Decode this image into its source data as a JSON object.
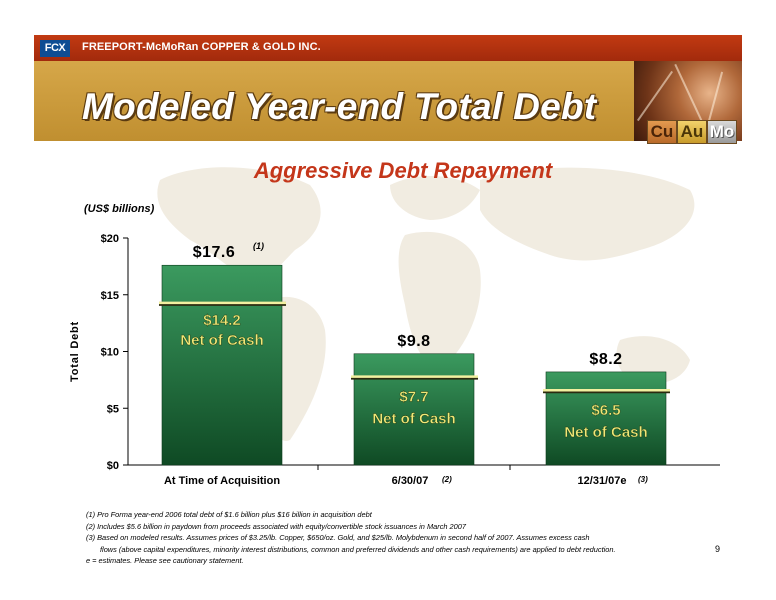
{
  "header": {
    "company": "FREEPORT-McMoRan COPPER & GOLD INC.",
    "logo_text": "FCX",
    "title": "Modeled Year-end Total Debt",
    "metals": [
      "Cu",
      "Au",
      "Mo"
    ]
  },
  "subtitle": "Aggressive Debt Repayment",
  "units": "(US$ billions)",
  "colors": {
    "accent_red": "#c4361a",
    "bar_green_top": "#3b9a5f",
    "bar_green_bottom": "#0f4a24",
    "net_line": "#f2f0a0",
    "label_yellow": "#f0e878"
  },
  "chart_data": {
    "type": "bar",
    "title": "",
    "xlabel": "",
    "ylabel": "Total Debt",
    "ylim": [
      0,
      20
    ],
    "y_ticks": [
      0,
      5,
      10,
      15,
      20
    ],
    "y_tick_labels": [
      "$0",
      "$5",
      "$10",
      "$15",
      "$20"
    ],
    "grid": false,
    "categories": [
      {
        "label": "At Time of Acquisition",
        "note": ""
      },
      {
        "label": "6/30/07",
        "note": "(2)"
      },
      {
        "label": "12/31/07e",
        "note": "(3)"
      }
    ],
    "series": [
      {
        "name": "Total Debt",
        "values": [
          17.6,
          9.8,
          8.2
        ],
        "labels": [
          "$17.6",
          "$9.8",
          "$8.2"
        ],
        "label_notes": [
          "(1)",
          "",
          ""
        ]
      },
      {
        "name": "Net of Cash",
        "values": [
          14.2,
          7.7,
          6.5
        ],
        "labels": [
          "$14.2",
          "$7.7",
          "$6.5"
        ],
        "caption": "Net of Cash"
      }
    ]
  },
  "footnotes": [
    "(1) Pro Forma year-end 2006 total debt of $1.6 billion plus $16 billion in acquisition debt",
    "(2) Includes $5.6 billion in paydown from proceeds associated with equity/convertible stock issuances in March 2007",
    "(3) Based on modeled results. Assumes prices of $3.25/lb. Copper, $650/oz. Gold, and $25/lb. Molybdenum in second half of 2007. Assumes excess cash",
    "flows (above capital expenditures, minority interest distributions, common and preferred dividends and other cash requirements) are applied to debt reduction.",
    "e = estimates. Please see cautionary statement."
  ],
  "page_number": "9"
}
